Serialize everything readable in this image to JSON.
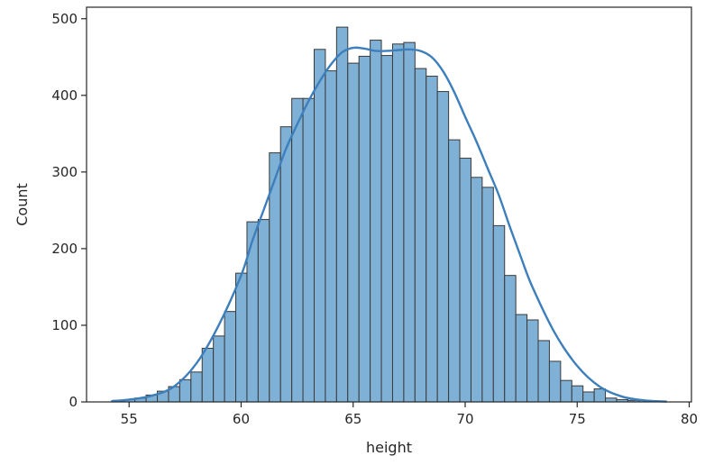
{
  "chart_data": {
    "type": "bar",
    "subtype": "histogram-with-kde",
    "title": "",
    "xlabel": "height",
    "ylabel": "Count",
    "xlim": [
      53.1,
      80.1
    ],
    "ylim": [
      0,
      515
    ],
    "xticks": [
      55,
      60,
      65,
      70,
      75,
      80
    ],
    "yticks": [
      0,
      100,
      200,
      300,
      400,
      500
    ],
    "grid": false,
    "bar_color": "#7fb0d5",
    "edge_color": "#3a3a3a",
    "kde_color": "#3d7fbc",
    "bin_start": 54.26,
    "bin_width": 0.5,
    "counts": [
      2,
      3,
      5,
      9,
      14,
      20,
      29,
      39,
      70,
      86,
      118,
      168,
      235,
      238,
      325,
      359,
      396,
      396,
      460,
      432,
      489,
      442,
      451,
      472,
      452,
      467,
      469,
      435,
      425,
      405,
      342,
      318,
      293,
      280,
      230,
      165,
      114,
      107,
      80,
      53,
      28,
      21,
      13,
      17,
      5,
      3,
      2,
      2
    ],
    "kde": {
      "x": [
        54.2,
        55,
        56,
        57,
        58,
        59,
        60,
        60.5,
        61,
        61.5,
        62,
        62.5,
        63,
        63.5,
        64,
        64.5,
        65,
        65.5,
        66,
        66.5,
        67,
        67.5,
        68,
        68.5,
        69,
        69.5,
        70,
        70.5,
        71,
        71.5,
        72,
        72.5,
        73,
        74,
        75,
        76,
        77,
        78,
        79
      ],
      "y": [
        1,
        3,
        8,
        20,
        50,
        100,
        165,
        210,
        250,
        290,
        330,
        362,
        392,
        418,
        440,
        456,
        462,
        461,
        458,
        458,
        459,
        460,
        458,
        450,
        432,
        405,
        372,
        340,
        305,
        270,
        228,
        188,
        150,
        90,
        47,
        20,
        7,
        2,
        0.5
      ]
    }
  }
}
